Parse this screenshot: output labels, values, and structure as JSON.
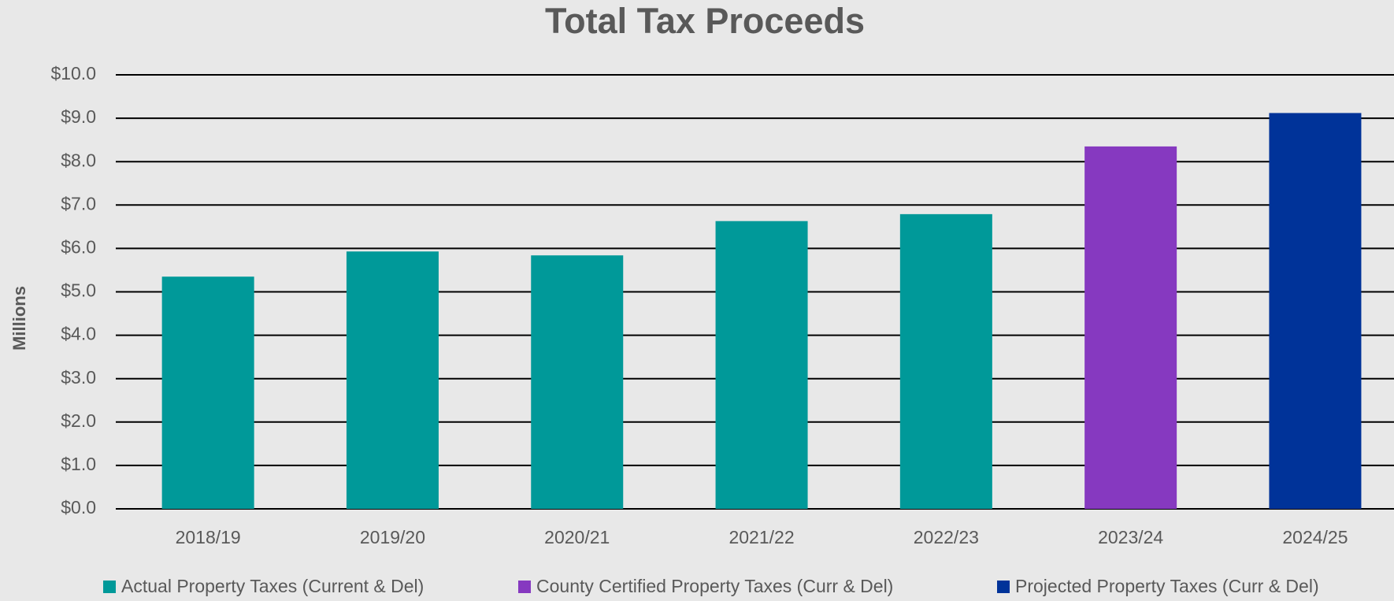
{
  "chart_data": {
    "type": "bar",
    "title": "Total Tax Proceeds",
    "y_label": "Millions",
    "categories": [
      "2018/19",
      "2019/20",
      "2020/21",
      "2021/22",
      "2022/23",
      "2023/24",
      "2024/25"
    ],
    "series": [
      {
        "name": "Actual Property Taxes (Current & Del)",
        "color": "#009999",
        "values": [
          5.35,
          5.93,
          5.84,
          6.63,
          6.79,
          null,
          null
        ]
      },
      {
        "name": "County Certified Property Taxes (Curr & Del)",
        "color": "#8639c0",
        "values": [
          null,
          null,
          null,
          null,
          null,
          8.35,
          null
        ]
      },
      {
        "name": "Projected Property Taxes (Curr & Del)",
        "color": "#003399",
        "values": [
          null,
          null,
          null,
          null,
          null,
          null,
          9.12
        ]
      }
    ],
    "ylim": [
      0,
      10
    ],
    "yticks": [
      {
        "value": 0,
        "label": "$0.0"
      },
      {
        "value": 1,
        "label": "$1.0"
      },
      {
        "value": 2,
        "label": "$2.0"
      },
      {
        "value": 3,
        "label": "$3.0"
      },
      {
        "value": 4,
        "label": "$4.0"
      },
      {
        "value": 5,
        "label": "$5.0"
      },
      {
        "value": 6,
        "label": "$6.0"
      },
      {
        "value": 7,
        "label": "$7.0"
      },
      {
        "value": 8,
        "label": "$8.0"
      },
      {
        "value": 9,
        "label": "$9.0"
      },
      {
        "value": 10,
        "label": "$10.0"
      }
    ],
    "grid": true,
    "legend": "bottom"
  }
}
